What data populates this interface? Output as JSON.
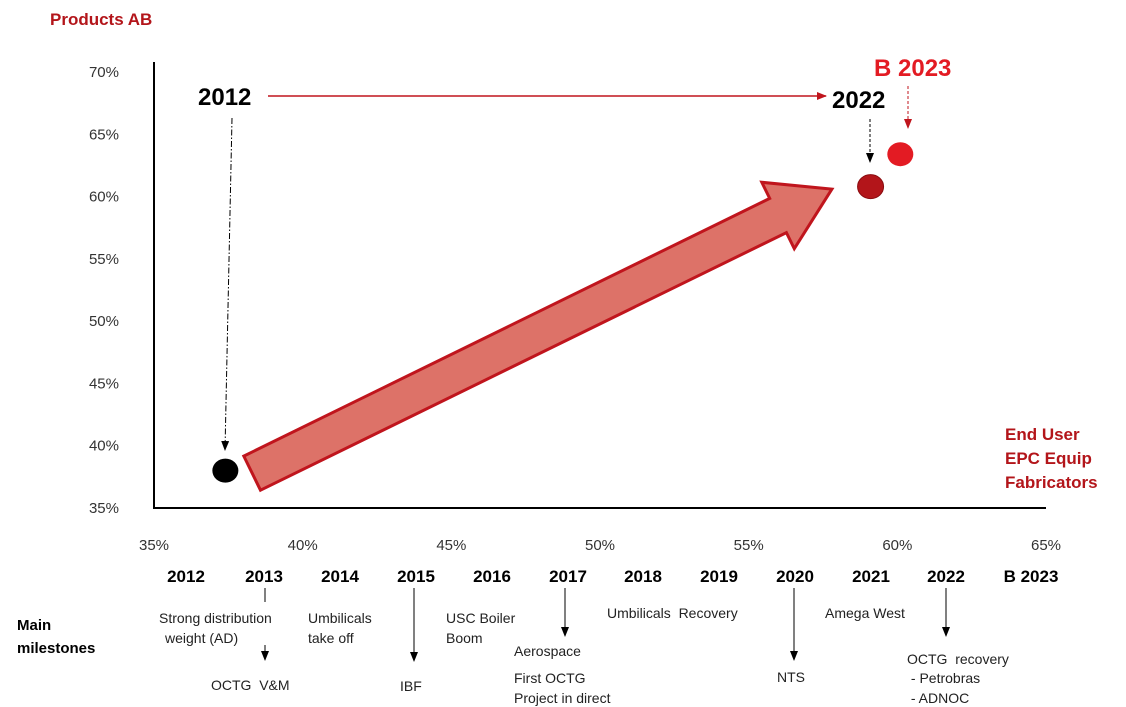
{
  "colors": {
    "dark_red": "#b3151a",
    "bright_red": "#e31b23",
    "arrow_fill": "#dd7268",
    "arrow_stroke": "#c0151d",
    "black": "#000000"
  },
  "chart_data": {
    "type": "scatter",
    "title": "Products AB",
    "x_axis_label_lines": [
      "End User",
      "EPC Equip",
      "Fabricators"
    ],
    "xlim": [
      35,
      65
    ],
    "ylim": [
      35,
      70
    ],
    "x_ticks": [
      "35%",
      "40%",
      "45%",
      "50%",
      "55%",
      "60%",
      "65%"
    ],
    "y_ticks": [
      "35%",
      "40%",
      "45%",
      "50%",
      "55%",
      "60%",
      "65%",
      "70%"
    ],
    "points": [
      {
        "label": "2012",
        "x": 37.4,
        "y": 38.0,
        "color": "#000000"
      },
      {
        "label": "2022",
        "x": 59.1,
        "y": 60.8,
        "color": "#b3151a"
      },
      {
        "label": "B 2023",
        "x": 60.1,
        "y": 63.4,
        "color": "#e31b23"
      }
    ],
    "trend_arrow": {
      "from": [
        38.3,
        37.8
      ],
      "to": [
        57.8,
        60.6
      ]
    },
    "timeline_arrow": {
      "from": "2012",
      "to": "2022"
    }
  },
  "milestones": {
    "row_label_lines": [
      "Main",
      "milestones"
    ],
    "years": [
      "2012",
      "2013",
      "2014",
      "2015",
      "2016",
      "2017",
      "2018",
      "2019",
      "2020",
      "2021",
      "2022",
      "B 2023"
    ],
    "notes": {
      "m2013": [
        "Strong distribution",
        "weight (AD)"
      ],
      "m2013_below": "OCTG  V&M",
      "m2014": [
        "Umbilicals",
        "take off"
      ],
      "m2015": "IBF",
      "m2016": [
        "USC Boiler",
        "Boom"
      ],
      "m2017": [
        "Aerospace"
      ],
      "m2017_below": [
        "First OCTG",
        "Project in direct"
      ],
      "m2018_19": "Umbilicals  Recovery",
      "m2020": "NTS",
      "m2021": "Amega West",
      "m2022": [
        "OCTG  recovery",
        " - Petrobras",
        " - ADNOC"
      ]
    }
  }
}
